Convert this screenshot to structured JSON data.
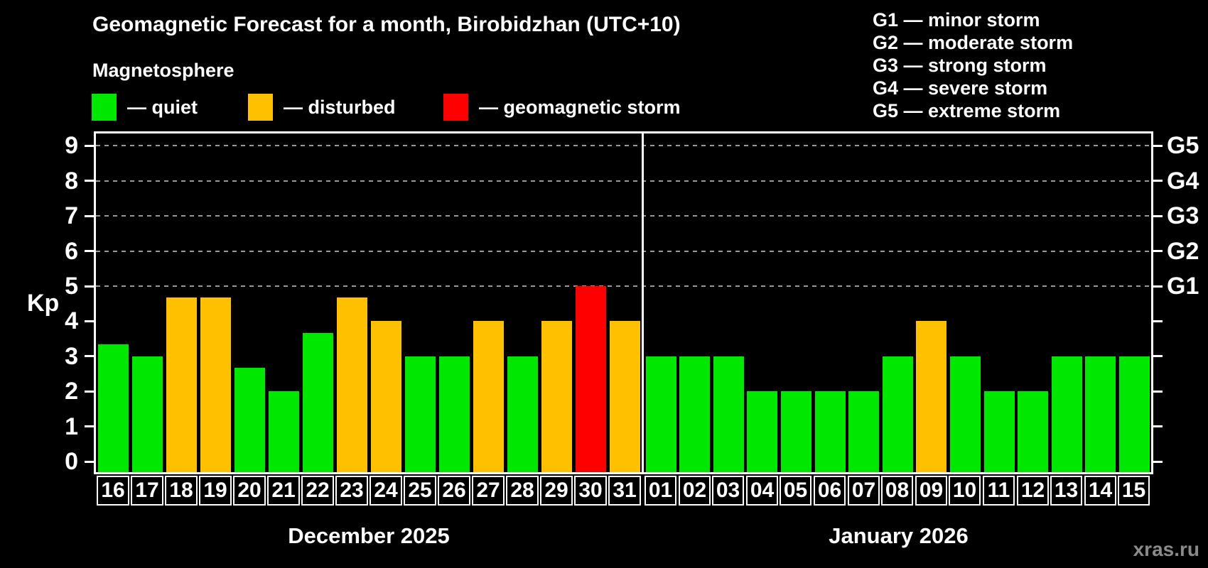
{
  "title": "Geomagnetic Forecast for a month, Birobidzhan (UTC+10)",
  "subtitle": "Magnetosphere",
  "legend": {
    "items": [
      {
        "key": "quiet",
        "label": "— quiet",
        "color": "#00e800"
      },
      {
        "key": "disturbed",
        "label": "— disturbed",
        "color": "#ffc000"
      },
      {
        "key": "storm",
        "label": "— geomagnetic storm",
        "color": "#ff0000"
      }
    ]
  },
  "g_scale_legend": [
    "G1 — minor storm",
    "G2 — moderate storm",
    "G3 — strong storm",
    "G4 — severe storm",
    "G5 — extreme storm"
  ],
  "watermark": "xras.ru",
  "chart_data": {
    "type": "bar",
    "ylabel": "Kp",
    "ylim": [
      0,
      9
    ],
    "yticks": [
      "0",
      "1",
      "2",
      "3",
      "4",
      "5",
      "6",
      "7",
      "8",
      "9"
    ],
    "gridlines_kp": [
      5,
      6,
      7,
      8,
      9
    ],
    "right_axis_labels": [
      {
        "label": "G1",
        "kp": 5
      },
      {
        "label": "G2",
        "kp": 6
      },
      {
        "label": "G3",
        "kp": 7
      },
      {
        "label": "G4",
        "kp": 8
      },
      {
        "label": "G5",
        "kp": 9
      }
    ],
    "status_colors": {
      "quiet": "#00e800",
      "disturbed": "#ffc000",
      "storm": "#ff0000"
    },
    "months": [
      {
        "label": "December 2025",
        "days": [
          {
            "day": "16",
            "kp": 3.33,
            "status": "quiet"
          },
          {
            "day": "17",
            "kp": 3.0,
            "status": "quiet"
          },
          {
            "day": "18",
            "kp": 4.67,
            "status": "disturbed"
          },
          {
            "day": "19",
            "kp": 4.67,
            "status": "disturbed"
          },
          {
            "day": "20",
            "kp": 2.67,
            "status": "quiet"
          },
          {
            "day": "21",
            "kp": 2.0,
            "status": "quiet"
          },
          {
            "day": "22",
            "kp": 3.67,
            "status": "quiet"
          },
          {
            "day": "23",
            "kp": 4.67,
            "status": "disturbed"
          },
          {
            "day": "24",
            "kp": 4.0,
            "status": "disturbed"
          },
          {
            "day": "25",
            "kp": 3.0,
            "status": "quiet"
          },
          {
            "day": "26",
            "kp": 3.0,
            "status": "quiet"
          },
          {
            "day": "27",
            "kp": 4.0,
            "status": "disturbed"
          },
          {
            "day": "28",
            "kp": 3.0,
            "status": "quiet"
          },
          {
            "day": "29",
            "kp": 4.0,
            "status": "disturbed"
          },
          {
            "day": "30",
            "kp": 5.0,
            "status": "storm"
          },
          {
            "day": "31",
            "kp": 4.0,
            "status": "disturbed"
          }
        ]
      },
      {
        "label": "January 2026",
        "days": [
          {
            "day": "01",
            "kp": 3.0,
            "status": "quiet"
          },
          {
            "day": "02",
            "kp": 3.0,
            "status": "quiet"
          },
          {
            "day": "03",
            "kp": 3.0,
            "status": "quiet"
          },
          {
            "day": "04",
            "kp": 2.0,
            "status": "quiet"
          },
          {
            "day": "05",
            "kp": 2.0,
            "status": "quiet"
          },
          {
            "day": "06",
            "kp": 2.0,
            "status": "quiet"
          },
          {
            "day": "07",
            "kp": 2.0,
            "status": "quiet"
          },
          {
            "day": "08",
            "kp": 3.0,
            "status": "quiet"
          },
          {
            "day": "09",
            "kp": 4.0,
            "status": "disturbed"
          },
          {
            "day": "10",
            "kp": 3.0,
            "status": "quiet"
          },
          {
            "day": "11",
            "kp": 2.0,
            "status": "quiet"
          },
          {
            "day": "12",
            "kp": 2.0,
            "status": "quiet"
          },
          {
            "day": "13",
            "kp": 3.0,
            "status": "quiet"
          },
          {
            "day": "14",
            "kp": 3.0,
            "status": "quiet"
          },
          {
            "day": "15",
            "kp": 3.0,
            "status": "quiet"
          }
        ]
      }
    ]
  }
}
